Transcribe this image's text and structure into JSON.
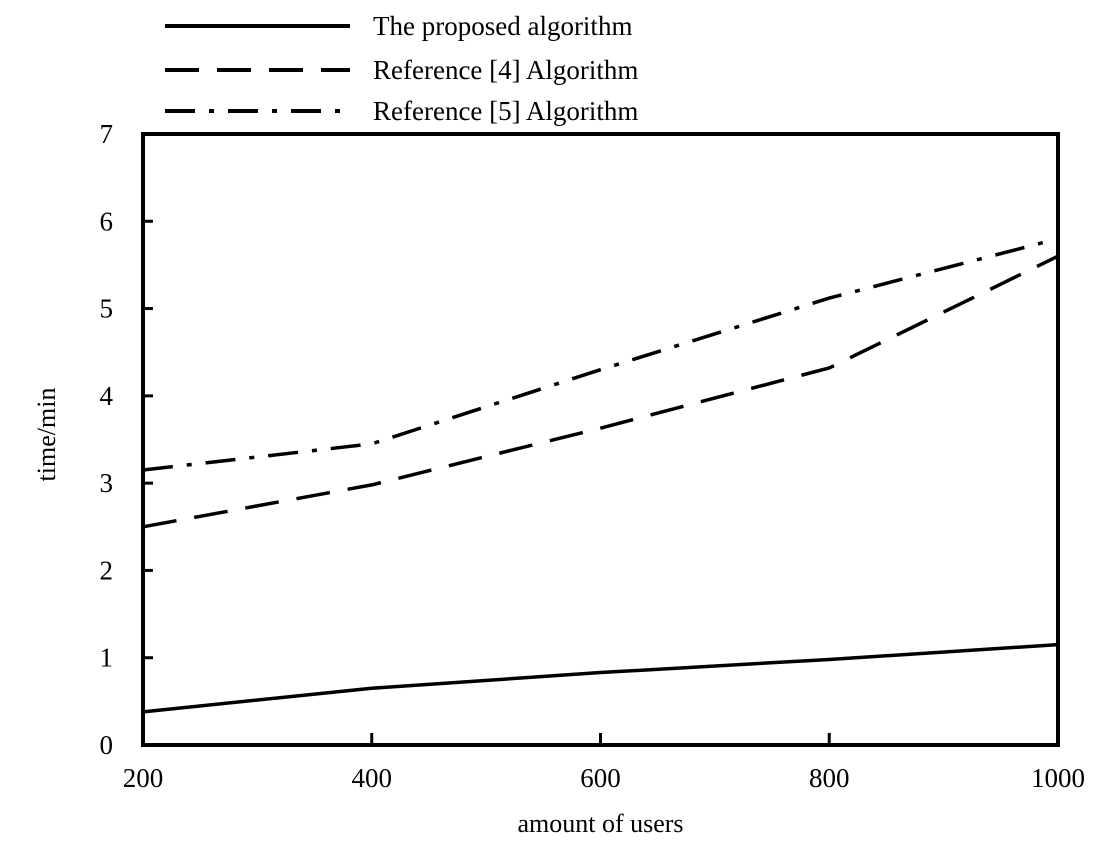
{
  "chart_data": {
    "type": "line",
    "title": "",
    "xlabel": "amount of users",
    "ylabel": "time/min",
    "x": [
      200,
      400,
      600,
      800,
      1000
    ],
    "xlim": [
      200,
      1000
    ],
    "ylim": [
      0,
      7
    ],
    "xticks": [
      "200",
      "400",
      "600",
      "800",
      "1000"
    ],
    "yticks": [
      "0",
      "1",
      "2",
      "3",
      "4",
      "5",
      "6",
      "7"
    ],
    "grid": false,
    "legend_position": "top-left, above plot",
    "series": [
      {
        "name": "The proposed algorithm",
        "line_style": "solid",
        "color": "#000000",
        "values": [
          0.38,
          0.65,
          0.83,
          0.98,
          1.15
        ]
      },
      {
        "name": "Reference [4] Algorithm",
        "line_style": "dashed",
        "color": "#000000",
        "values": [
          2.5,
          2.98,
          3.63,
          4.32,
          5.6
        ]
      },
      {
        "name": "Reference [5] Algorithm",
        "line_style": "dash-dot",
        "color": "#000000",
        "values": [
          3.15,
          3.45,
          4.3,
          5.12,
          5.8
        ]
      }
    ]
  }
}
